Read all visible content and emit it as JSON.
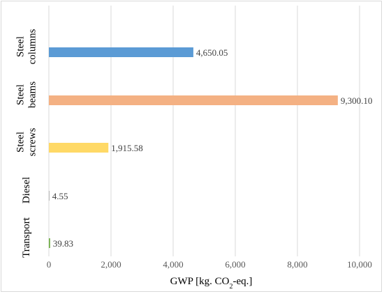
{
  "chart_data": {
    "type": "bar",
    "orientation": "horizontal",
    "categories": [
      [
        "Steel",
        "columns"
      ],
      [
        "Steel",
        "beams"
      ],
      [
        "Steel",
        "screws"
      ],
      [
        "Diesel"
      ],
      [
        "Transport"
      ]
    ],
    "values": [
      4650.05,
      9300.1,
      1915.58,
      4.55,
      39.83
    ],
    "data_labels": [
      "4,650.05",
      "9,300.10",
      "1,915.58",
      "4.55",
      "39.83"
    ],
    "colors": [
      "#5b9bd5",
      "#f4b183",
      "#ffd966",
      "#a5a5a5",
      "#70ad47"
    ],
    "xlim": [
      0,
      10000
    ],
    "x_ticks": [
      0,
      2000,
      4000,
      6000,
      8000,
      10000
    ],
    "x_tick_labels": [
      "0",
      "2,000",
      "4,000",
      "6,000",
      "8,000",
      "10,000"
    ],
    "xlabel": {
      "main": "GWP [kg. CO",
      "sub": "2",
      "tail": "-eq.]"
    },
    "ylabel": "",
    "title": "",
    "grid": "vertical",
    "legend": "none"
  }
}
